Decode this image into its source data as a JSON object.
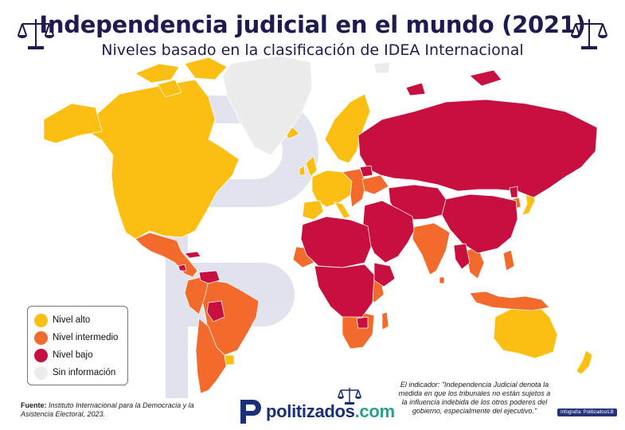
{
  "header": {
    "title": "Independencia judicial en el mundo (2021)",
    "subtitle": "Niveles basado en la clasificación de IDEA Internacional"
  },
  "icons": {
    "left": "scales-of-justice-icon",
    "right": "scales-of-justice-icon"
  },
  "legend": {
    "items": [
      {
        "label": "Nivel alto",
        "color": "#fbbf13"
      },
      {
        "label": "Nivel intermedio",
        "color": "#f26b2c"
      },
      {
        "label": "Nivel bajo",
        "color": "#c7103f"
      },
      {
        "label": "Sin información",
        "color": "#ececec"
      }
    ]
  },
  "source": {
    "label": "Fuente:",
    "text": "Instituto Internacional para la Democracia y la Asistencia Electoral, 2023."
  },
  "brand": {
    "name": "politizados",
    "suffix": ".com",
    "color": "#1a2f7a",
    "accent": "#2a9f8f"
  },
  "indicator_note": "El indicador: \"Independencia Judicial denota la medida en que los tribunales no están sujetos a la influencia indebida de los otros poderes del gobierno, especialmente del ejecutivo.\"",
  "credit": "Infografía: Politizados/LB",
  "colors": {
    "title": "#1d1b4f",
    "ocean": "#ffffff",
    "border": "#ffffff"
  }
}
